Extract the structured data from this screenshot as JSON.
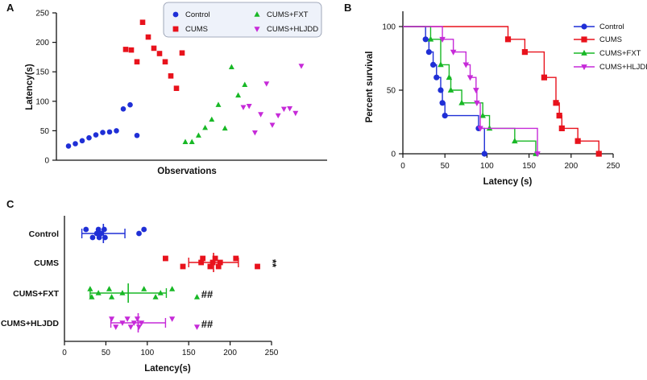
{
  "colors": {
    "control": "#1f2fd6",
    "cums": "#e8121c",
    "fxt": "#18b826",
    "hljdd": "#c62ad8",
    "axis": "#111111"
  },
  "chart_data": [
    {
      "panel": "A",
      "type": "scatter",
      "xlabel": "Observations",
      "ylabel": "Latency(s)",
      "ylim": [
        0,
        250
      ],
      "yticks": [
        "0",
        "50",
        "100",
        "150",
        "200",
        "250"
      ],
      "legend": [
        "Control",
        "CUMS",
        "CUMS+FXT",
        "CUMS+HLJDD"
      ],
      "series": [
        {
          "name": "Control",
          "marker": "circle",
          "values": [
            24,
            28,
            33,
            38,
            43,
            47,
            48,
            50,
            87,
            94,
            42
          ]
        },
        {
          "name": "CUMS",
          "marker": "square",
          "values": [
            188,
            187,
            167,
            234,
            209,
            190,
            181,
            167,
            143,
            122,
            182
          ]
        },
        {
          "name": "CUMS+FXT",
          "marker": "triangle",
          "values": [
            31,
            31,
            42,
            55,
            69,
            94,
            54,
            158,
            110,
            128
          ]
        },
        {
          "name": "CUMS+HLJDD",
          "marker": "triangle-down",
          "values": [
            90,
            92,
            47,
            78,
            130,
            60,
            76,
            87,
            88,
            80,
            160
          ]
        }
      ]
    },
    {
      "panel": "B",
      "type": "line",
      "subtype": "kaplan-meier step",
      "xlabel": "Latency (s)",
      "ylabel": "Percent survival",
      "xlim": [
        0,
        250
      ],
      "ylim": [
        0,
        100
      ],
      "xticks": [
        "0",
        "50",
        "100",
        "150",
        "200",
        "250"
      ],
      "yticks": [
        "0",
        "50",
        "100"
      ],
      "legend": [
        "Control",
        "CUMS",
        "CUMS+FXT",
        "CUMS+HLJDD"
      ],
      "series": [
        {
          "name": "Control",
          "marker": "circle",
          "x": [
            27,
            31,
            36,
            40,
            45,
            47,
            50,
            90,
            97
          ],
          "y": [
            90,
            80,
            70,
            60,
            50,
            40,
            30,
            20,
            0
          ]
        },
        {
          "name": "CUMS",
          "marker": "square",
          "x": [
            125,
            145,
            168,
            182,
            186,
            189,
            208,
            233
          ],
          "y": [
            90,
            80,
            60,
            40,
            30,
            20,
            10,
            0
          ]
        },
        {
          "name": "CUMS+FXT",
          "marker": "triangle",
          "x": [
            33,
            45,
            55,
            57,
            70,
            95,
            103,
            133,
            158
          ],
          "y": [
            90,
            70,
            60,
            50,
            40,
            30,
            20,
            10,
            0
          ]
        },
        {
          "name": "CUMS+HLJDD",
          "marker": "triangle-down",
          "x": [
            47,
            60,
            75,
            80,
            87,
            88,
            92,
            160
          ],
          "y": [
            90,
            80,
            70,
            60,
            50,
            40,
            20,
            0
          ]
        }
      ]
    },
    {
      "panel": "C",
      "type": "scatter",
      "subtype": "horizontal dot plot with mean and SD",
      "xlabel": "Latency(s)",
      "xlim": [
        0,
        250
      ],
      "xticks": [
        "0",
        "50",
        "100",
        "150",
        "200",
        "250"
      ],
      "categories": [
        "Control",
        "CUMS",
        "CUMS+FXT",
        "CUMS+HLJDD"
      ],
      "groups": [
        {
          "name": "Control",
          "marker": "circle",
          "mean": 47,
          "sd": 26,
          "values": [
            26,
            34,
            39,
            41,
            42,
            44,
            48,
            49,
            90,
            96
          ],
          "sig": ""
        },
        {
          "name": "CUMS",
          "marker": "square",
          "mean": 180,
          "sd": 30,
          "values": [
            122,
            143,
            165,
            167,
            176,
            179,
            182,
            186,
            188,
            207,
            233
          ],
          "sig": "**"
        },
        {
          "name": "CUMS+FXT",
          "marker": "triangle",
          "mean": 77,
          "sd": 46,
          "values": [
            31,
            33,
            41,
            54,
            57,
            70,
            96,
            110,
            116,
            130,
            160
          ],
          "sig": "##"
        },
        {
          "name": "CUMS+HLJDD",
          "marker": "triangle-down",
          "mean": 89,
          "sd": 33,
          "values": [
            57,
            62,
            70,
            76,
            80,
            84,
            88,
            90,
            93,
            130,
            160
          ],
          "sig": "##"
        }
      ]
    }
  ]
}
